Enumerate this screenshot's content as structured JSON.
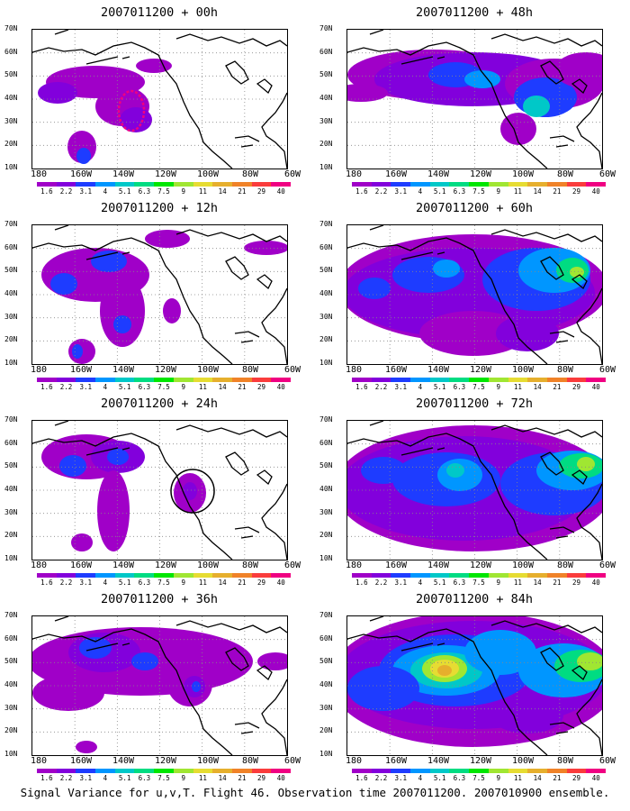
{
  "panels": [
    {
      "title": "2007011200 + 00h"
    },
    {
      "title": "2007011200 + 48h"
    },
    {
      "title": "2007011200 + 12h"
    },
    {
      "title": "2007011200 + 60h"
    },
    {
      "title": "2007011200 + 24h"
    },
    {
      "title": "2007011200 + 72h"
    },
    {
      "title": "2007011200 + 36h"
    },
    {
      "title": "2007011200 + 84h"
    }
  ],
  "lat_labels": [
    "70N",
    "60N",
    "50N",
    "40N",
    "30N",
    "20N",
    "10N"
  ],
  "lon_labels": [
    "180",
    "160W",
    "140W",
    "120W",
    "100W",
    "80W",
    "60W"
  ],
  "colorbar": {
    "levels": [
      "1.6",
      "2.2",
      "3.1",
      "4",
      "5.1",
      "6.3",
      "7.5",
      "9",
      "11",
      "14",
      "21",
      "29",
      "40"
    ],
    "colors": [
      "#a000c8",
      "#8200dc",
      "#1e3cff",
      "#0096ff",
      "#00c8c8",
      "#00dc82",
      "#00e600",
      "#a0e632",
      "#e6dc32",
      "#e6af2d",
      "#f08228",
      "#fa3c3c",
      "#f00082"
    ]
  },
  "caption": "Signal Variance for u,v,T. Flight 46. Observation time 2007011200. 2007010900 ensemble."
}
